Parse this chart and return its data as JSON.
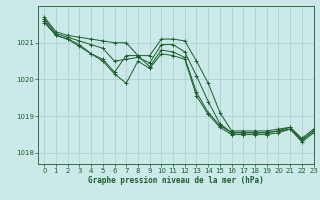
{
  "xlabel": "Graphe pression niveau de la mer (hPa)",
  "xlim": [
    -0.5,
    23
  ],
  "ylim": [
    1017.7,
    1022.0
  ],
  "yticks": [
    1018,
    1019,
    1020,
    1021
  ],
  "xticks": [
    0,
    1,
    2,
    3,
    4,
    5,
    6,
    7,
    8,
    9,
    10,
    11,
    12,
    13,
    14,
    15,
    16,
    17,
    18,
    19,
    20,
    21,
    22,
    23
  ],
  "background_color": "#cce9e9",
  "grid_color": "#aacccc",
  "line_color": "#1a5c2a",
  "figsize": [
    3.2,
    2.0
  ],
  "dpi": 100,
  "lines": [
    {
      "x": [
        0,
        1,
        2,
        3,
        4,
        5,
        6,
        7,
        8,
        9,
        10,
        11,
        12,
        13,
        14,
        15,
        16,
        17,
        18,
        19,
        20,
        21,
        22,
        23
      ],
      "y": [
        1021.7,
        1021.3,
        1021.2,
        1021.15,
        1021.1,
        1021.05,
        1021.0,
        1021.0,
        1020.65,
        1020.65,
        1021.1,
        1021.1,
        1021.05,
        1020.5,
        1019.9,
        1019.1,
        1018.6,
        1018.6,
        1018.6,
        1018.6,
        1018.65,
        1018.7,
        1018.4,
        1018.65
      ]
    },
    {
      "x": [
        0,
        1,
        2,
        3,
        4,
        5,
        6,
        7,
        8,
        9,
        10,
        11,
        12,
        13,
        14,
        15,
        16,
        17,
        18,
        19,
        20,
        21,
        22,
        23
      ],
      "y": [
        1021.65,
        1021.25,
        1021.15,
        1021.05,
        1020.95,
        1020.85,
        1020.5,
        1020.55,
        1020.6,
        1020.45,
        1020.95,
        1020.95,
        1020.75,
        1020.1,
        1019.4,
        1018.8,
        1018.55,
        1018.55,
        1018.55,
        1018.55,
        1018.6,
        1018.65,
        1018.35,
        1018.6
      ]
    },
    {
      "x": [
        0,
        1,
        2,
        3,
        4,
        5,
        6,
        7,
        8,
        9,
        10,
        11,
        12,
        13,
        14,
        15,
        16,
        17,
        18,
        19,
        20,
        21,
        22,
        23
      ],
      "y": [
        1021.55,
        1021.2,
        1021.1,
        1020.9,
        1020.7,
        1020.55,
        1020.2,
        1020.65,
        1020.65,
        1020.35,
        1020.8,
        1020.75,
        1020.6,
        1019.65,
        1019.1,
        1018.75,
        1018.55,
        1018.55,
        1018.55,
        1018.55,
        1018.6,
        1018.7,
        1018.35,
        1018.6
      ]
    },
    {
      "x": [
        0,
        1,
        2,
        3,
        4,
        5,
        6,
        7,
        8,
        9,
        10,
        11,
        12,
        13,
        14,
        15,
        16,
        17,
        18,
        19,
        20,
        21,
        22,
        23
      ],
      "y": [
        1021.6,
        1021.2,
        1021.1,
        1020.95,
        1020.7,
        1020.5,
        1020.15,
        1019.9,
        1020.5,
        1020.3,
        1020.7,
        1020.65,
        1020.55,
        1019.55,
        1019.05,
        1018.7,
        1018.5,
        1018.5,
        1018.5,
        1018.5,
        1018.55,
        1018.65,
        1018.3,
        1018.55
      ]
    }
  ]
}
